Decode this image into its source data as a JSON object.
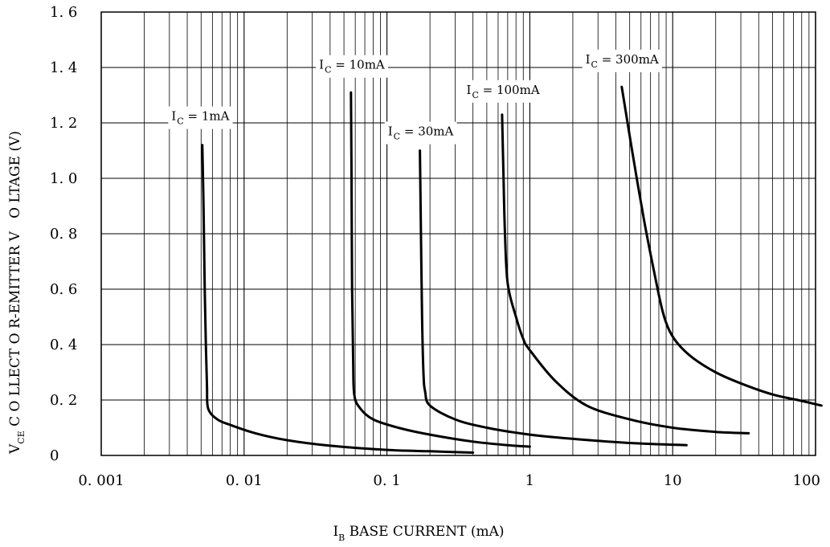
{
  "chart_data": {
    "type": "line",
    "x_scale": "log",
    "xlim": [
      0.001,
      100
    ],
    "ylim": [
      0,
      1.6
    ],
    "grid": true,
    "xlabel": {
      "main": "I",
      "sub": "B",
      "rest": " BASE CURRENT (mA)"
    },
    "ylabel": {
      "main": "V",
      "sub": "CE",
      "rest": " C O LLECT O R-EMITTER V   O LTAGE (V)"
    },
    "x_ticks": [
      {
        "value": 0.001,
        "label": "0. 001"
      },
      {
        "value": 0.01,
        "label": "0. 01"
      },
      {
        "value": 0.1,
        "label": "0. 1"
      },
      {
        "value": 1,
        "label": "1"
      },
      {
        "value": 10,
        "label": "10"
      },
      {
        "value": 100,
        "label": "100"
      }
    ],
    "y_ticks": [
      {
        "value": 0,
        "label": "0"
      },
      {
        "value": 0.2,
        "label": "0. 2"
      },
      {
        "value": 0.4,
        "label": "0. 4"
      },
      {
        "value": 0.6,
        "label": "0. 6"
      },
      {
        "value": 0.8,
        "label": "0. 8"
      },
      {
        "value": 1.0,
        "label": "1. 0"
      },
      {
        "value": 1.2,
        "label": "1. 2"
      },
      {
        "value": 1.4,
        "label": "1. 4"
      },
      {
        "value": 1.6,
        "label": "1. 6"
      }
    ],
    "series": [
      {
        "name": {
          "main": "I",
          "sub": "C",
          "rest": " = 1mA"
        },
        "label_at": [
          0.0031,
          1.21
        ],
        "points": [
          [
            0.0051,
            1.12
          ],
          [
            0.0052,
            0.9
          ],
          [
            0.0053,
            0.6
          ],
          [
            0.0054,
            0.4
          ],
          [
            0.0055,
            0.25
          ],
          [
            0.0056,
            0.17
          ],
          [
            0.0065,
            0.13
          ],
          [
            0.008,
            0.11
          ],
          [
            0.012,
            0.08
          ],
          [
            0.02,
            0.055
          ],
          [
            0.04,
            0.035
          ],
          [
            0.1,
            0.02
          ],
          [
            0.2,
            0.015
          ],
          [
            0.4,
            0.01
          ]
        ]
      },
      {
        "name": {
          "main": "I",
          "sub": "C",
          "rest": " = 10mA"
        },
        "label_at": [
          0.0335,
          1.395
        ],
        "points": [
          [
            0.056,
            1.31
          ],
          [
            0.0565,
            1.0
          ],
          [
            0.057,
            0.6
          ],
          [
            0.058,
            0.35
          ],
          [
            0.059,
            0.22
          ],
          [
            0.065,
            0.17
          ],
          [
            0.08,
            0.13
          ],
          [
            0.12,
            0.1
          ],
          [
            0.2,
            0.075
          ],
          [
            0.4,
            0.05
          ],
          [
            0.7,
            0.037
          ],
          [
            1.0,
            0.032
          ]
        ]
      },
      {
        "name": {
          "main": "I",
          "sub": "C",
          "rest": " = 30mA"
        },
        "label_at": [
          0.1015,
          1.155
        ],
        "points": [
          [
            0.17,
            1.1
          ],
          [
            0.173,
            0.8
          ],
          [
            0.176,
            0.5
          ],
          [
            0.18,
            0.3
          ],
          [
            0.185,
            0.23
          ],
          [
            0.2,
            0.18
          ],
          [
            0.3,
            0.13
          ],
          [
            0.5,
            0.1
          ],
          [
            1.0,
            0.075
          ],
          [
            2.0,
            0.06
          ],
          [
            5.0,
            0.045
          ],
          [
            12.5,
            0.037
          ]
        ]
      },
      {
        "name": {
          "main": "I",
          "sub": "C",
          "rest": " = 100mA"
        },
        "label_at": [
          0.36,
          1.305
        ],
        "points": [
          [
            0.64,
            1.23
          ],
          [
            0.655,
            1.0
          ],
          [
            0.67,
            0.8
          ],
          [
            0.7,
            0.62
          ],
          [
            0.8,
            0.5
          ],
          [
            0.9,
            0.42
          ],
          [
            1.0,
            0.38
          ],
          [
            1.5,
            0.27
          ],
          [
            2.5,
            0.18
          ],
          [
            5.0,
            0.13
          ],
          [
            10.0,
            0.1
          ],
          [
            20.0,
            0.085
          ],
          [
            34.0,
            0.08
          ]
        ]
      },
      {
        "name": {
          "main": "I",
          "sub": "C",
          "rest": " = 300mA"
        },
        "label_at": [
          2.45,
          1.415
        ],
        "points": [
          [
            4.4,
            1.33
          ],
          [
            5.2,
            1.1
          ],
          [
            6.3,
            0.85
          ],
          [
            7.5,
            0.65
          ],
          [
            8.5,
            0.52
          ],
          [
            9.5,
            0.45
          ],
          [
            11.0,
            0.4
          ],
          [
            14.0,
            0.35
          ],
          [
            20.0,
            0.3
          ],
          [
            30.0,
            0.26
          ],
          [
            50.0,
            0.22
          ],
          [
            75.0,
            0.2
          ],
          [
            100.0,
            0.185
          ],
          [
            110.0,
            0.18
          ]
        ]
      }
    ]
  }
}
